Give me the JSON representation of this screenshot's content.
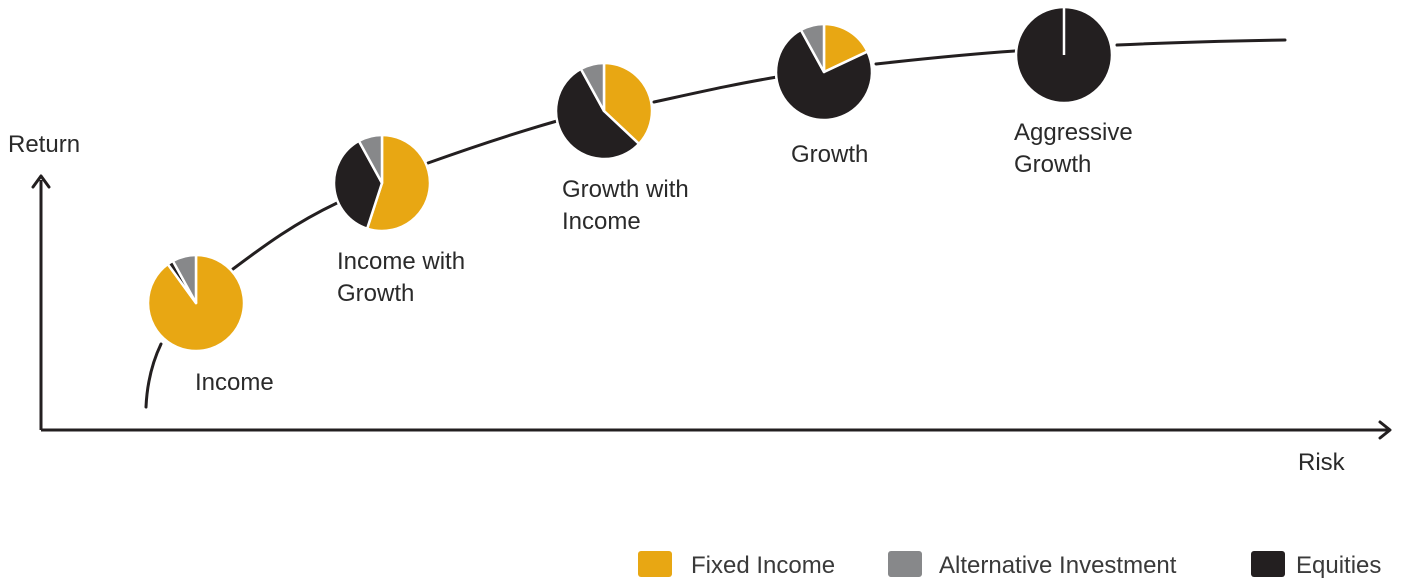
{
  "colors": {
    "fixed_income": "#e8a713",
    "alternative": "#87888a",
    "equities": "#231f20",
    "axis": "#231f20"
  },
  "axes": {
    "y_label": "Return",
    "x_label": "Risk"
  },
  "legend": {
    "placement": "bottom-right",
    "items": [
      {
        "name": "Fixed Income",
        "key": "fixed_income"
      },
      {
        "name": "Alternative Investment",
        "key": "alternative"
      },
      {
        "name": "Equities",
        "key": "equities"
      }
    ]
  },
  "chart_data": {
    "type": "pie",
    "portfolios": [
      {
        "label": [
          "Income"
        ],
        "fixed_income": 90,
        "alternative": 8,
        "equities": 2
      },
      {
        "label": [
          "Income with",
          "Growth"
        ],
        "fixed_income": 55,
        "alternative": 8,
        "equities": 37
      },
      {
        "label": [
          "Growth with",
          "Income"
        ],
        "fixed_income": 37,
        "alternative": 8,
        "equities": 55
      },
      {
        "label": [
          "Growth"
        ],
        "fixed_income": 18,
        "alternative": 8,
        "equities": 74
      },
      {
        "label": [
          "Aggressive",
          "Growth"
        ],
        "fixed_income": 0,
        "alternative": 0,
        "equities": 100
      }
    ]
  }
}
